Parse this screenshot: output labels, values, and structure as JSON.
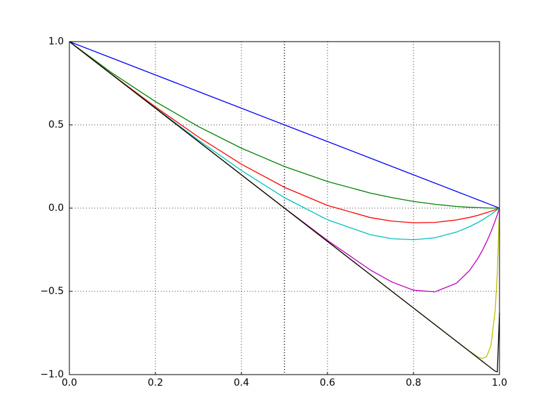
{
  "chart_data": {
    "type": "line",
    "x": [
      0,
      0.1,
      0.2,
      0.3,
      0.4,
      0.5,
      0.6,
      0.7,
      0.75,
      0.8,
      0.85,
      0.9,
      0.93,
      0.95,
      0.96,
      0.97,
      0.98,
      0.99,
      0.995,
      1.0
    ],
    "series": [
      {
        "color": "#0000ff",
        "values": [
          1,
          0.9,
          0.8,
          0.7,
          0.6,
          0.5,
          0.4,
          0.3,
          0.25,
          0.2,
          0.15,
          0.1,
          0.07,
          0.05,
          0.04,
          0.03,
          0.02,
          0.01,
          0.005,
          0
        ]
      },
      {
        "color": "#008000",
        "values": [
          1,
          0.81,
          0.64,
          0.49,
          0.36,
          0.25,
          0.16,
          0.09,
          0.063,
          0.04,
          0.023,
          0.01,
          0.005,
          0.003,
          0.002,
          0.001,
          0,
          0,
          0,
          0
        ]
      },
      {
        "color": "#ff0000",
        "values": [
          1,
          0.801,
          0.608,
          0.427,
          0.264,
          0.125,
          0.016,
          -0.057,
          -0.078,
          -0.088,
          -0.086,
          -0.071,
          -0.056,
          -0.043,
          -0.035,
          -0.027,
          -0.019,
          -0.01,
          -0.005,
          0
        ]
      },
      {
        "color": "#00bfbf",
        "values": [
          1,
          0.8,
          0.602,
          0.408,
          0.226,
          0.063,
          -0.07,
          -0.16,
          -0.184,
          -0.19,
          -0.178,
          -0.144,
          -0.112,
          -0.086,
          -0.071,
          -0.055,
          -0.038,
          -0.019,
          -0.01,
          0
        ]
      },
      {
        "color": "#bf00bf",
        "values": [
          1,
          0.8,
          0.6,
          0.4,
          0.2,
          0.001,
          -0.194,
          -0.372,
          -0.444,
          -0.493,
          -0.503,
          -0.451,
          -0.376,
          -0.301,
          -0.255,
          -0.203,
          -0.143,
          -0.076,
          -0.039,
          0
        ]
      },
      {
        "color": "#bfbf00",
        "values": [
          1,
          0.8,
          0.6,
          0.4,
          0.2,
          0,
          -0.2,
          -0.4,
          -0.5,
          -0.6,
          -0.7,
          -0.8,
          -0.859,
          -0.894,
          -0.903,
          -0.892,
          -0.827,
          -0.614,
          -0.384,
          0
        ]
      },
      {
        "color": "#000000",
        "values": [
          1,
          0.8,
          0.6,
          0.4,
          0.2,
          0,
          -0.2,
          -0.4,
          -0.5,
          -0.6,
          -0.7,
          -0.8,
          -0.86,
          -0.9,
          -0.92,
          -0.94,
          -0.96,
          -0.98,
          -0.983,
          -0.63
        ]
      }
    ],
    "vline": 0.5,
    "xlim": [
      0,
      1
    ],
    "ylim": [
      -1,
      1
    ],
    "xticks": [
      {
        "value": 0,
        "label": "0.0"
      },
      0.2,
      0.4,
      0.6,
      0.8,
      {
        "value": 1,
        "label": "1.0"
      }
    ],
    "yticks": [
      {
        "value": -1,
        "label": "−1.0"
      },
      {
        "value": -0.5,
        "label": "−0.5"
      },
      {
        "value": 0,
        "label": "0.0"
      },
      0.5,
      {
        "value": 1,
        "label": "1.0"
      }
    ],
    "grid": true
  }
}
